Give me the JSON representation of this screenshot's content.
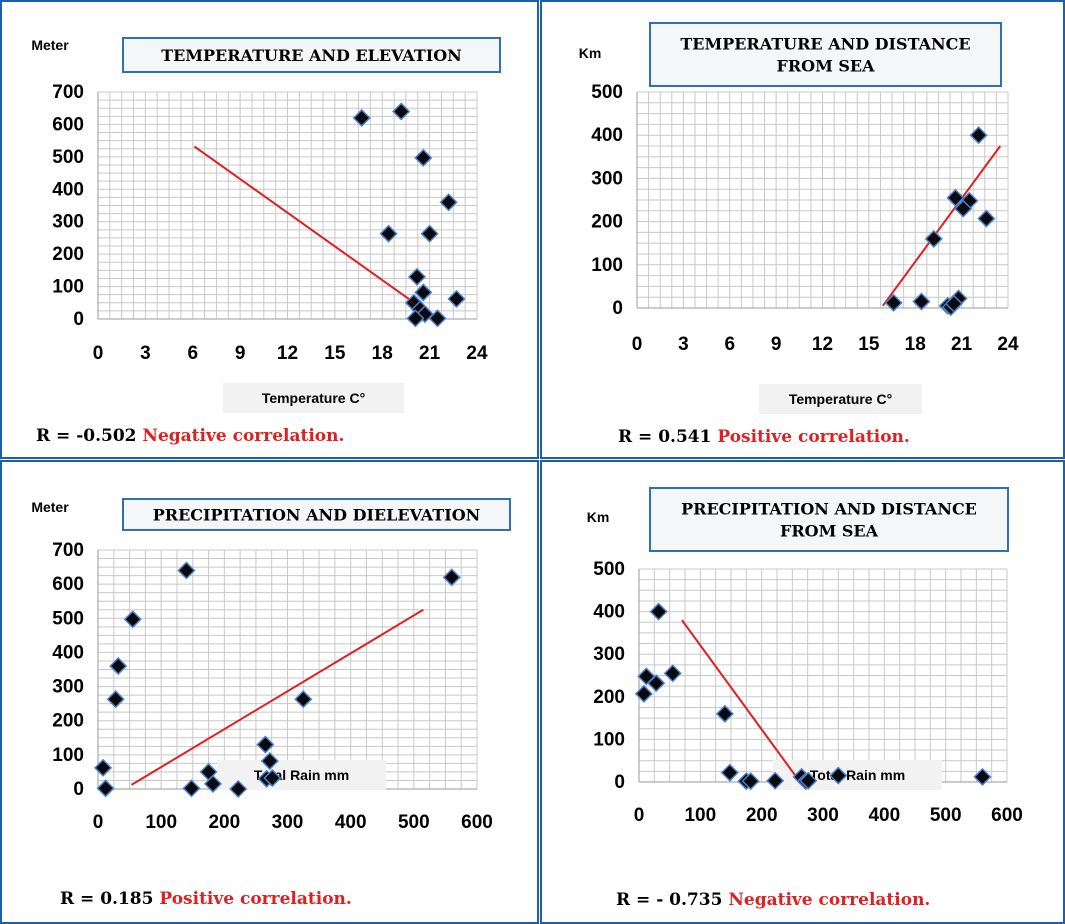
{
  "colors": {
    "panel_border": "#1f5fa8",
    "grid": "#c8c8c8",
    "marker_fill": "#0a0a0a",
    "marker_stroke": "#4a7fd0",
    "trendline": "#e02020",
    "title_border": "#2f6fb8",
    "negative_text": "#e02020"
  },
  "chart_data": [
    {
      "type": "scatter",
      "title": "TEMPERATURE AND ELEVATION",
      "ylabel": "Meter",
      "xlabel": "Temperature C°",
      "xlim": [
        0,
        24
      ],
      "ylim": [
        0,
        700
      ],
      "xticks": [
        0,
        3,
        6,
        9,
        12,
        15,
        18,
        21,
        24
      ],
      "yticks": [
        0,
        100,
        200,
        300,
        400,
        500,
        600,
        700
      ],
      "points": [
        {
          "x": 16.7,
          "y": 620
        },
        {
          "x": 19.2,
          "y": 640
        },
        {
          "x": 20.6,
          "y": 497
        },
        {
          "x": 22.2,
          "y": 360
        },
        {
          "x": 18.4,
          "y": 263
        },
        {
          "x": 21.0,
          "y": 263
        },
        {
          "x": 20.2,
          "y": 130
        },
        {
          "x": 20.6,
          "y": 82
        },
        {
          "x": 20.0,
          "y": 50
        },
        {
          "x": 20.4,
          "y": 30
        },
        {
          "x": 20.7,
          "y": 15
        },
        {
          "x": 20.1,
          "y": 2
        },
        {
          "x": 21.5,
          "y": 2
        },
        {
          "x": 22.7,
          "y": 62
        }
      ],
      "trendline": [
        [
          6.1,
          532
        ],
        [
          20.4,
          37
        ]
      ],
      "r_value": "R = -0.502",
      "r_text": "Negative correlation."
    },
    {
      "type": "scatter",
      "title": "TEMPERATURE AND DISTANCE FROM SEA",
      "ylabel": "Km",
      "xlabel": "Temperature C°",
      "xlim": [
        0,
        24
      ],
      "ylim": [
        0,
        500
      ],
      "xticks": [
        0,
        3,
        6,
        9,
        12,
        15,
        18,
        21,
        24
      ],
      "yticks": [
        0,
        100,
        200,
        300,
        400,
        500
      ],
      "points": [
        {
          "x": 22.1,
          "y": 400
        },
        {
          "x": 20.6,
          "y": 255
        },
        {
          "x": 21.5,
          "y": 248
        },
        {
          "x": 21.1,
          "y": 230
        },
        {
          "x": 22.6,
          "y": 207
        },
        {
          "x": 19.2,
          "y": 160
        },
        {
          "x": 16.6,
          "y": 12
        },
        {
          "x": 18.4,
          "y": 15
        },
        {
          "x": 20.1,
          "y": 5
        },
        {
          "x": 20.3,
          "y": 2
        },
        {
          "x": 20.8,
          "y": 22
        },
        {
          "x": 20.5,
          "y": 10
        }
      ],
      "trendline": [
        [
          15.9,
          5
        ],
        [
          23.5,
          375
        ]
      ],
      "r_value": "R = 0.541",
      "r_text": "Positive correlation."
    },
    {
      "type": "scatter",
      "title": "PRECIPITATION AND DIELEVATION",
      "ylabel": "Meter",
      "xlabel": "Total Rain mm",
      "xlim": [
        0,
        600
      ],
      "ylim": [
        0,
        700
      ],
      "xticks": [
        0,
        100,
        200,
        300,
        400,
        500,
        600
      ],
      "yticks": [
        0,
        100,
        200,
        300,
        400,
        500,
        600,
        700
      ],
      "points": [
        {
          "x": 140,
          "y": 640
        },
        {
          "x": 560,
          "y": 620
        },
        {
          "x": 55,
          "y": 497
        },
        {
          "x": 32,
          "y": 360
        },
        {
          "x": 28,
          "y": 263
        },
        {
          "x": 325,
          "y": 263
        },
        {
          "x": 265,
          "y": 130
        },
        {
          "x": 272,
          "y": 82
        },
        {
          "x": 8,
          "y": 62
        },
        {
          "x": 175,
          "y": 50
        },
        {
          "x": 267,
          "y": 30
        },
        {
          "x": 276,
          "y": 32
        },
        {
          "x": 182,
          "y": 15
        },
        {
          "x": 12,
          "y": 2
        },
        {
          "x": 148,
          "y": 2
        },
        {
          "x": 222,
          "y": 0
        }
      ],
      "trendline": [
        [
          53,
          12
        ],
        [
          515,
          525
        ]
      ],
      "r_value": "R = 0.185",
      "r_text": "Positive correlation."
    },
    {
      "type": "scatter",
      "title": "PRECIPITATION AND DISTANCE FROM SEA",
      "ylabel": "Km",
      "xlabel": "Total Rain mm",
      "xlim": [
        0,
        600
      ],
      "ylim": [
        0,
        500
      ],
      "xticks": [
        0,
        100,
        200,
        300,
        400,
        500,
        600
      ],
      "yticks": [
        0,
        100,
        200,
        300,
        400,
        500
      ],
      "points": [
        {
          "x": 32,
          "y": 400
        },
        {
          "x": 55,
          "y": 255
        },
        {
          "x": 12,
          "y": 248
        },
        {
          "x": 28,
          "y": 232
        },
        {
          "x": 8,
          "y": 207
        },
        {
          "x": 140,
          "y": 160
        },
        {
          "x": 148,
          "y": 22
        },
        {
          "x": 325,
          "y": 15
        },
        {
          "x": 560,
          "y": 12
        },
        {
          "x": 265,
          "y": 12
        },
        {
          "x": 175,
          "y": 2
        },
        {
          "x": 182,
          "y": 2
        },
        {
          "x": 222,
          "y": 3
        },
        {
          "x": 272,
          "y": 2
        },
        {
          "x": 276,
          "y": 3
        }
      ],
      "trendline": [
        [
          70,
          380
        ],
        [
          260,
          5
        ]
      ],
      "r_value": "R = - 0.735",
      "r_text": "Negative correlation."
    }
  ]
}
